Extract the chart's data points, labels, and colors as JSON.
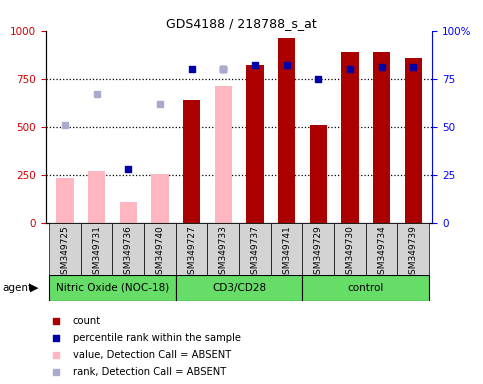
{
  "title": "GDS4188 / 218788_s_at",
  "samples": [
    "GSM349725",
    "GSM349731",
    "GSM349736",
    "GSM349740",
    "GSM349727",
    "GSM349733",
    "GSM349737",
    "GSM349741",
    "GSM349729",
    "GSM349730",
    "GSM349734",
    "GSM349739"
  ],
  "count_values": [
    null,
    null,
    null,
    null,
    640,
    null,
    820,
    960,
    510,
    890,
    890,
    860
  ],
  "value_absent": [
    235,
    270,
    110,
    255,
    null,
    710,
    null,
    null,
    null,
    null,
    null,
    null
  ],
  "rank_absent_scatter": [
    510,
    670,
    null,
    620,
    null,
    800,
    null,
    null,
    null,
    null,
    null,
    null
  ],
  "percentile_rank_scatter": [
    null,
    null,
    280,
    null,
    800,
    800,
    820,
    820,
    750,
    800,
    810,
    810
  ],
  "ylim_left": [
    0,
    1000
  ],
  "yticks_left": [
    0,
    250,
    500,
    750,
    1000
  ],
  "yticks_right": [
    0,
    25,
    50,
    75,
    100
  ],
  "bar_width": 0.55,
  "count_color": "#AA0000",
  "absent_value_color": "#FFB6C1",
  "percentile_color": "#0000AA",
  "absent_rank_color": "#AAAACC",
  "group_defs": [
    {
      "label": "Nitric Oxide (NOC-18)",
      "start": 0,
      "end": 4
    },
    {
      "label": "CD3/CD28",
      "start": 4,
      "end": 8
    },
    {
      "label": "control",
      "start": 8,
      "end": 12
    }
  ]
}
